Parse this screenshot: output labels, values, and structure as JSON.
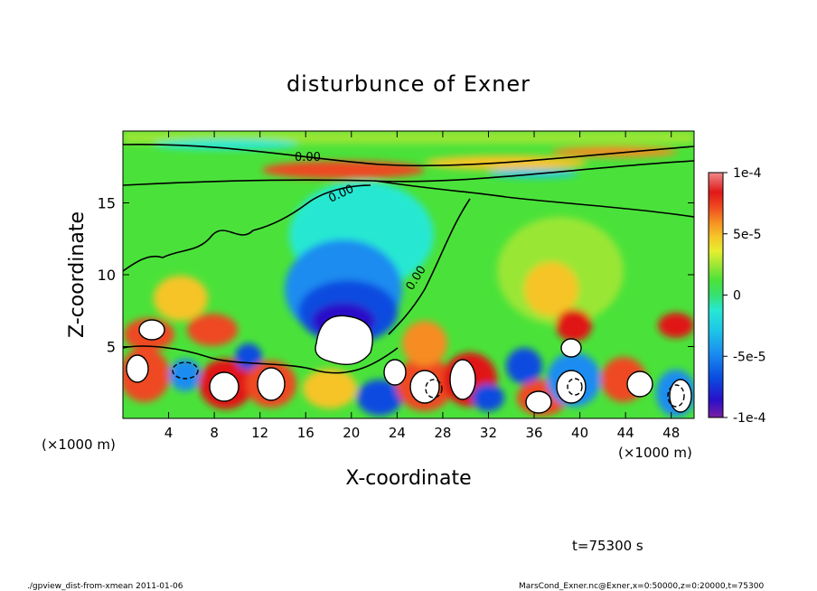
{
  "chart_data": {
    "type": "heatmap",
    "title": "disturbunce of Exner",
    "xlabel": "X-coordinate",
    "ylabel": "Z-coordinate",
    "x_unit_left": "(×1000 m)",
    "x_unit_right": "(×1000 m)",
    "xlim": [
      0,
      50
    ],
    "ylim": [
      0,
      20
    ],
    "x_ticks": [
      4,
      8,
      12,
      16,
      20,
      24,
      28,
      32,
      36,
      40,
      44,
      48
    ],
    "y_ticks": [
      5,
      10,
      15
    ],
    "colorbar": {
      "range": [
        -0.0001,
        0.0001
      ],
      "tick_values": [
        0.0001,
        5e-05,
        0,
        -5e-05,
        -0.0001
      ],
      "tick_labels": [
        "1e-4",
        "5e-5",
        "0",
        "-5e-5",
        "-1e-4"
      ],
      "colors_low_to_high": [
        "#7a1fa2",
        "#2a0fc8",
        "#0a4be0",
        "#1a8cf0",
        "#1ec8e6",
        "#28e8d2",
        "#38e070",
        "#4ae23a",
        "#9ae636",
        "#e6ee2e",
        "#f6c428",
        "#f68c22",
        "#ee4a20",
        "#e01818",
        "#f08a8a",
        "#ffffff"
      ]
    },
    "contour_labels": [
      "0.00",
      "0.00",
      "0.00"
    ],
    "grid": false
  },
  "annotations": {
    "time": "t=75300 s",
    "footer_left": "./gpview_dist-from-xmean  2011-01-06",
    "footer_right": "MarsCond_Exner.nc@Exner,x=0:50000,z=0:20000,t=75300"
  }
}
